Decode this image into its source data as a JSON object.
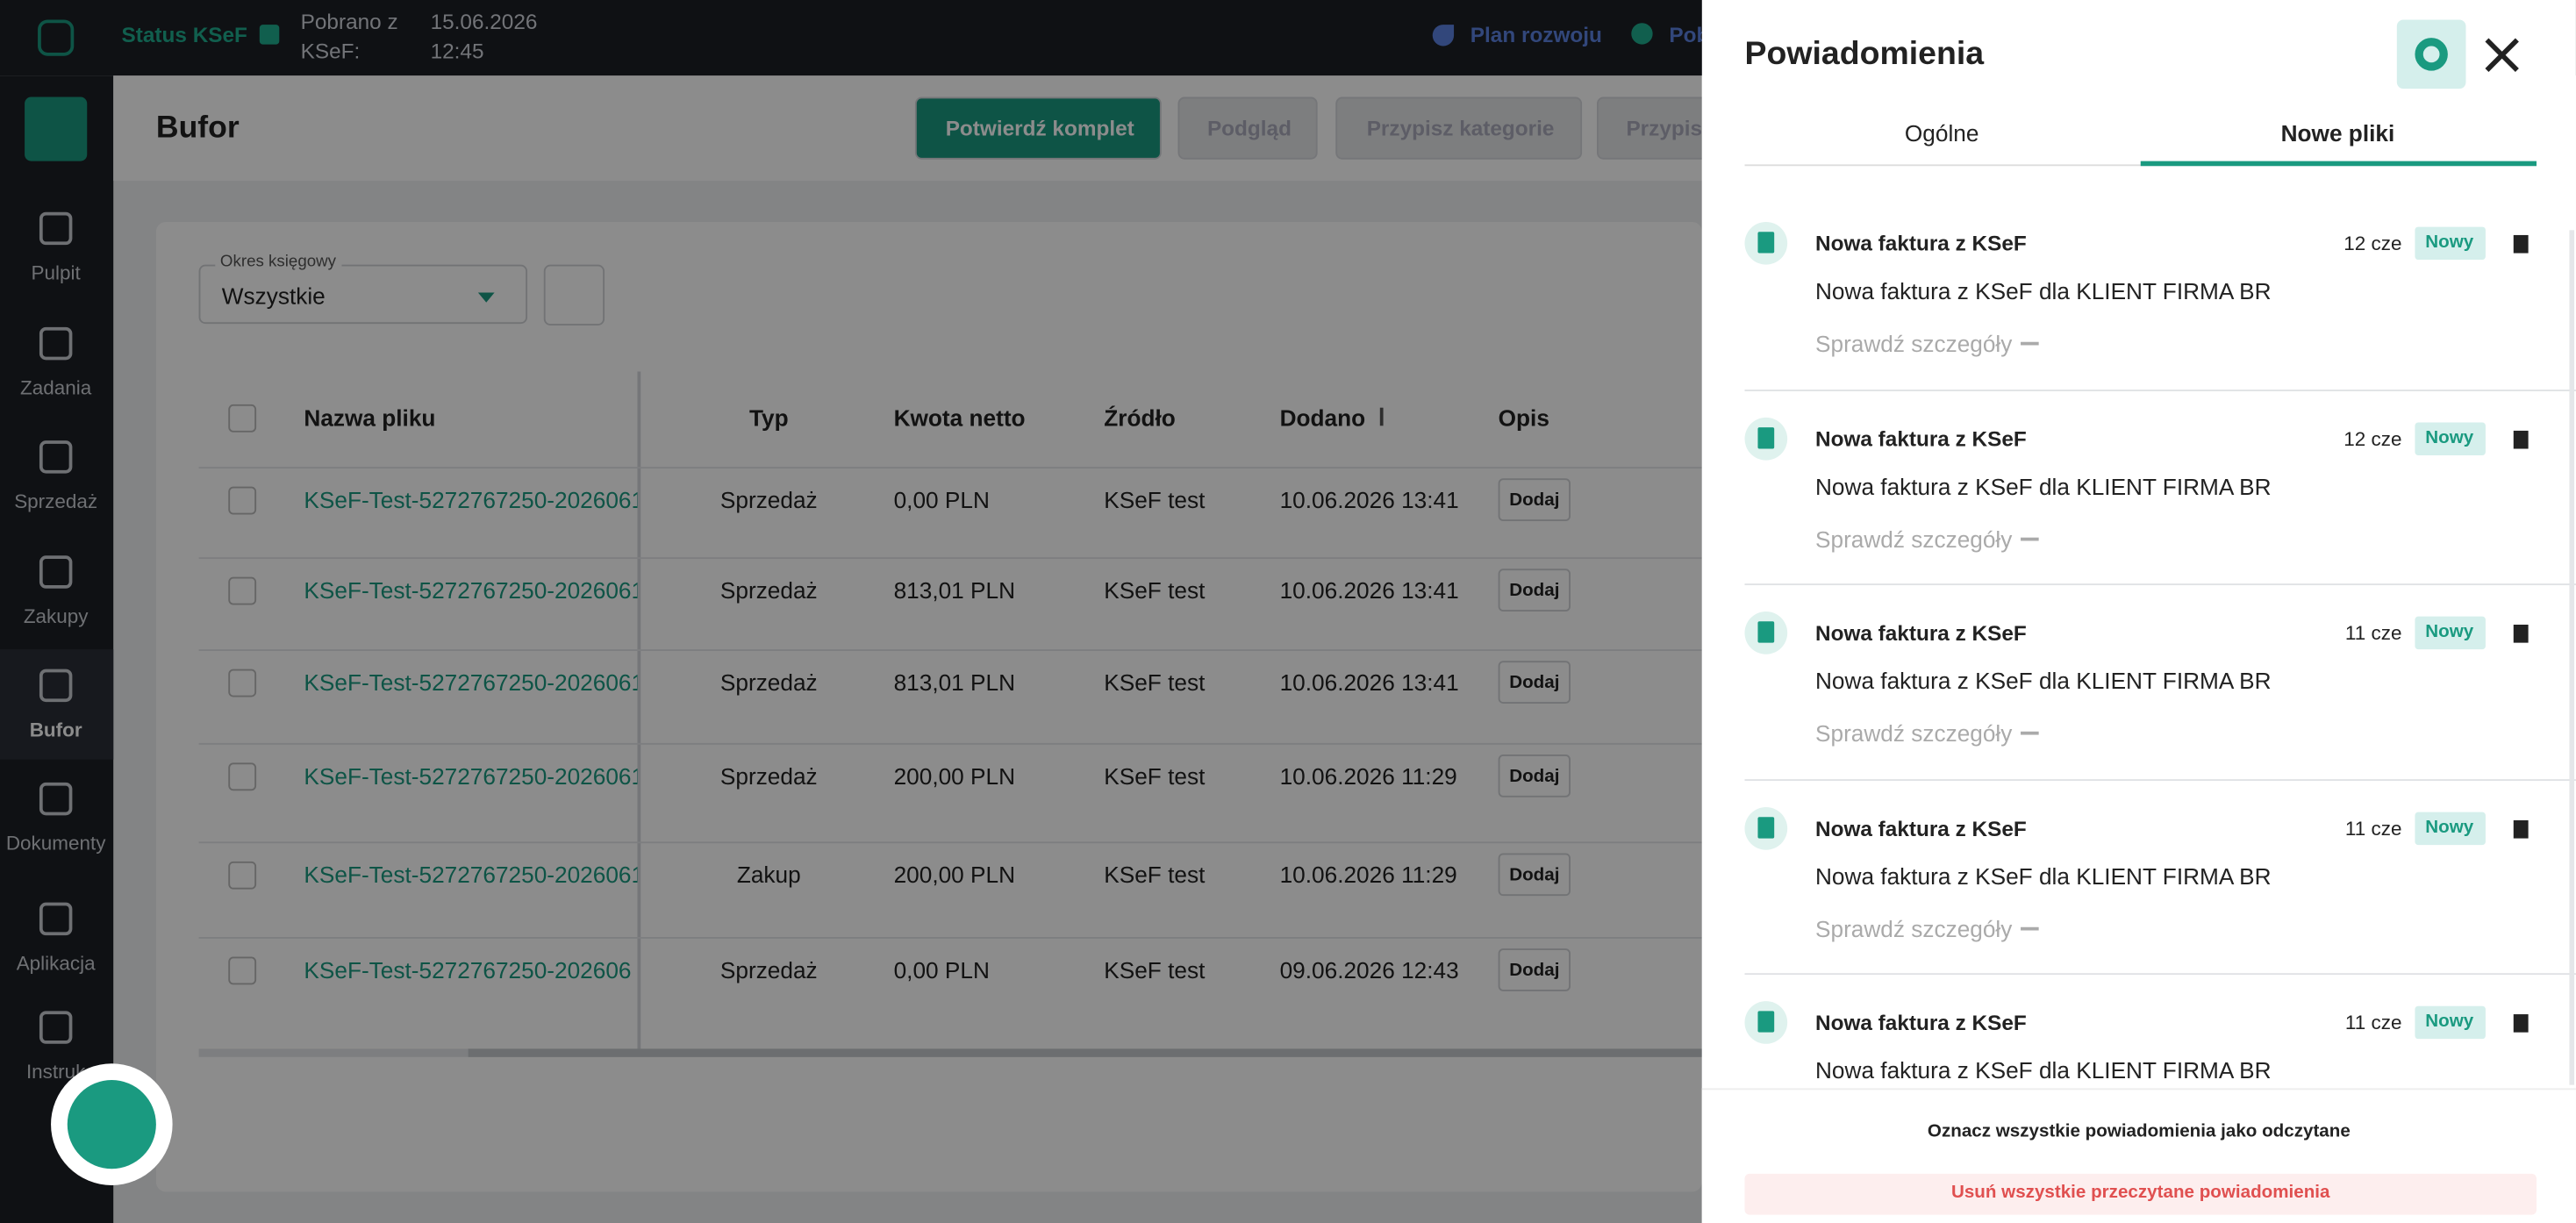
{
  "topbar": {
    "status": "Status KSeF",
    "fetched_label": [
      "Pobrano z",
      "KSeF:"
    ],
    "fetched_at": [
      "15.06.2026",
      "12:45"
    ],
    "roadmap": "Plan rozwoju",
    "cut_link": "Pob"
  },
  "sidebar": {
    "items": [
      "Pulpit",
      "Zadania",
      "Sprzedaż",
      "Zakupy",
      "Bufor",
      "Dokumenty",
      "Aplikacja",
      "Instruk"
    ]
  },
  "header": {
    "title": "Bufor",
    "buttons": [
      "Potwierdź komplet",
      "Podgląd",
      "Przypisz kategorie",
      "Przypis"
    ]
  },
  "filter": {
    "label": "Okres księgowy",
    "value": "Wszystkie"
  },
  "table": {
    "columns": [
      "Nazwa pliku",
      "Typ",
      "Kwota netto",
      "Źródło",
      "Dodano",
      "Opis"
    ],
    "rows": [
      [
        "KSeF-Test-5272767250-2026061",
        "Sprzedaż",
        "0,00 PLN",
        "KSeF test",
        "10.06.2026 13:41",
        "Dodaj"
      ],
      [
        "KSeF-Test-5272767250-2026061",
        "Sprzedaż",
        "813,01 PLN",
        "KSeF test",
        "10.06.2026 13:41",
        "Dodaj"
      ],
      [
        "KSeF-Test-5272767250-2026061",
        "Sprzedaż",
        "813,01 PLN",
        "KSeF test",
        "10.06.2026 13:41",
        "Dodaj"
      ],
      [
        "KSeF-Test-5272767250-2026061",
        "Sprzedaż",
        "200,00 PLN",
        "KSeF test",
        "10.06.2026 11:29",
        "Dodaj"
      ],
      [
        "KSeF-Test-5272767250-2026061",
        "Zakup",
        "200,00 PLN",
        "KSeF test",
        "10.06.2026 11:29",
        "Dodaj"
      ],
      [
        "KSeF-Test-5272767250-202606",
        "Sprzedaż",
        "0,00 PLN",
        "KSeF test",
        "09.06.2026 12:43",
        "Dodaj"
      ]
    ]
  },
  "panel": {
    "title": "Powiadomienia",
    "tabs": [
      "Ogólne",
      "Nowe pliki"
    ],
    "notifications": [
      {
        "title": "Nowa faktura z KSeF",
        "time": "12 cze",
        "badge": "Nowy",
        "body": "Nowa faktura z KSeF dla KLIENT FIRMA BR",
        "link": "Sprawdź szczegóły"
      },
      {
        "title": "Nowa faktura z KSeF",
        "time": "12 cze",
        "badge": "Nowy",
        "body": "Nowa faktura z KSeF dla KLIENT FIRMA BR",
        "link": "Sprawdź szczegóły"
      },
      {
        "title": "Nowa faktura z KSeF",
        "time": "11 cze",
        "badge": "Nowy",
        "body": "Nowa faktura z KSeF dla KLIENT FIRMA BR",
        "link": "Sprawdź szczegóły"
      },
      {
        "title": "Nowa faktura z KSeF",
        "time": "11 cze",
        "badge": "Nowy",
        "body": "Nowa faktura z KSeF dla KLIENT FIRMA BR",
        "link": "Sprawdź szczegóły"
      },
      {
        "title": "Nowa faktura z KSeF",
        "time": "11 cze",
        "badge": "Nowy",
        "body": "Nowa faktura z KSeF dla KLIENT FIRMA BR"
      }
    ],
    "mark_all": "Oznacz wszystkie powiadomienia jako odczytane",
    "delete_read": "Usuń wszystkie przeczytane powiadomienia"
  }
}
